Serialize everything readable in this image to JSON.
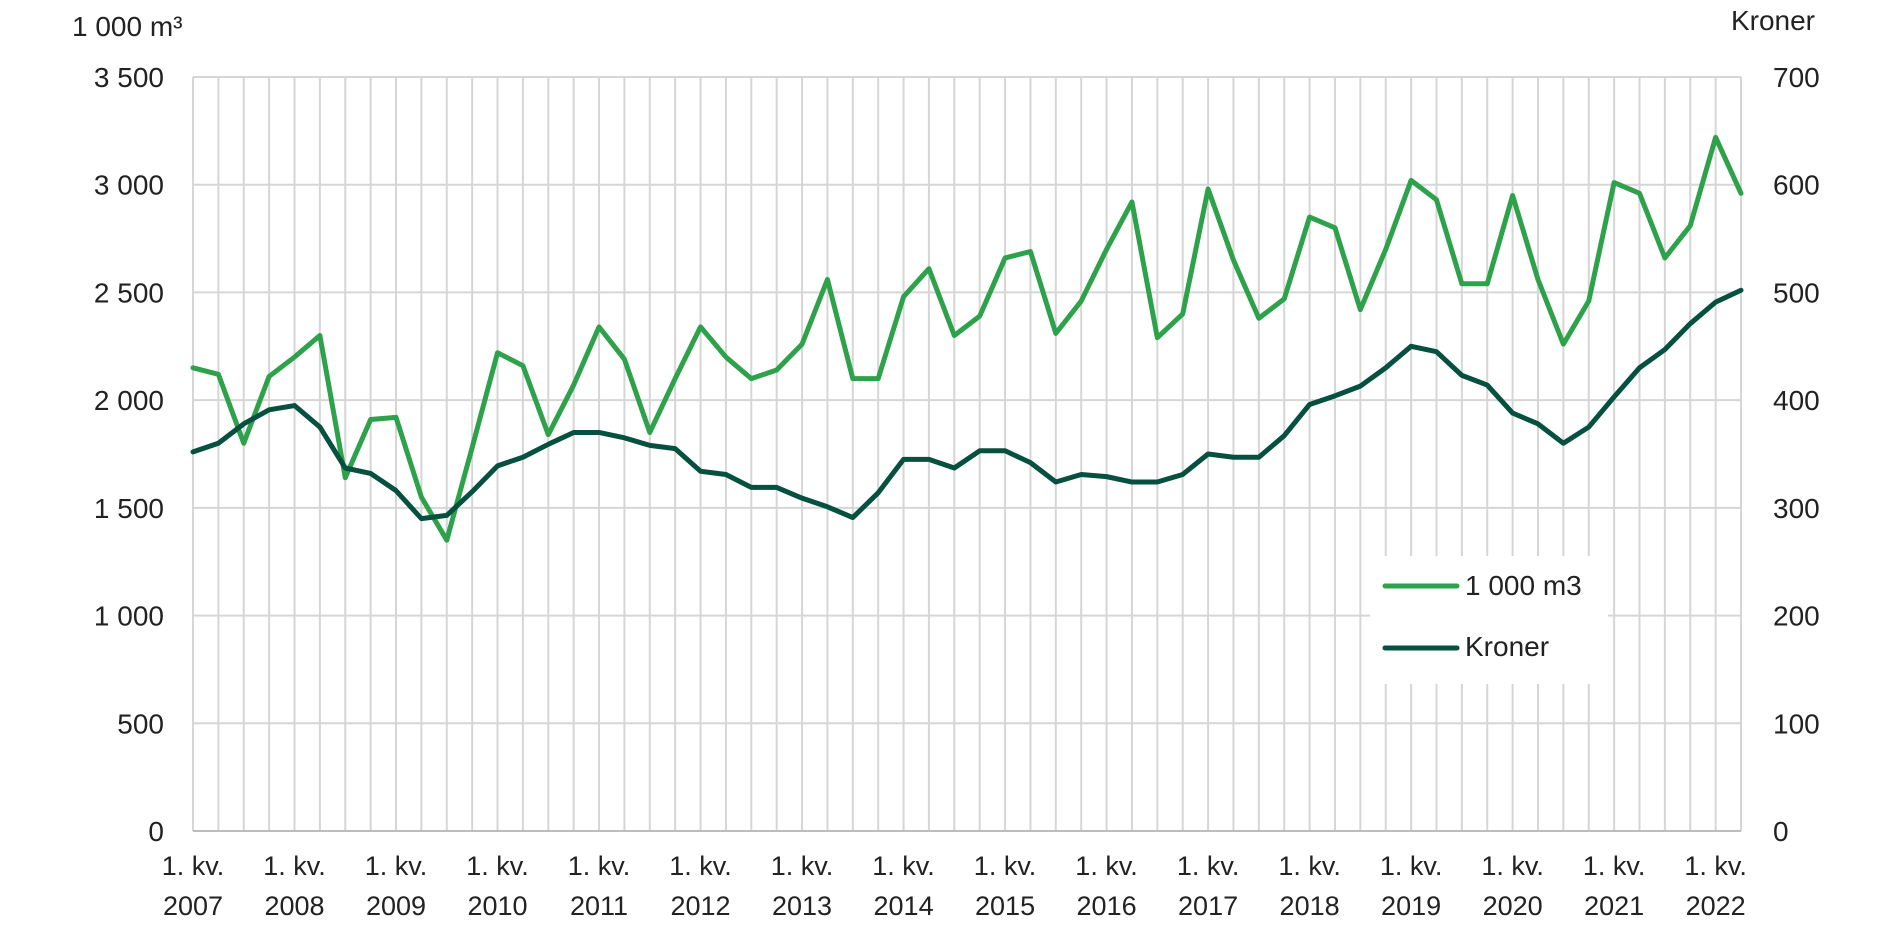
{
  "chart_data": {
    "type": "line",
    "left_axis_label": "1 000 m³",
    "right_axis_label": "Kroner",
    "left_ylim": [
      0,
      3500
    ],
    "right_ylim": [
      0,
      700
    ],
    "left_ticks": [
      "0",
      "500",
      "1 000",
      "1 500",
      "2 000",
      "2 500",
      "3 000",
      "3 500"
    ],
    "right_ticks": [
      "0",
      "100",
      "200",
      "300",
      "400",
      "500",
      "600",
      "700"
    ],
    "x_tick_labels": [
      {
        "line1": "1. kv.",
        "line2": "2007"
      },
      {
        "line1": "1. kv.",
        "line2": "2008"
      },
      {
        "line1": "1. kv.",
        "line2": "2009"
      },
      {
        "line1": "1. kv.",
        "line2": "2010"
      },
      {
        "line1": "1. kv.",
        "line2": "2011"
      },
      {
        "line1": "1. kv.",
        "line2": "2012"
      },
      {
        "line1": "1. kv.",
        "line2": "2013"
      },
      {
        "line1": "1. kv.",
        "line2": "2014"
      },
      {
        "line1": "1. kv.",
        "line2": "2015"
      },
      {
        "line1": "1. kv.",
        "line2": "2016"
      },
      {
        "line1": "1. kv.",
        "line2": "2017"
      },
      {
        "line1": "1. kv.",
        "line2": "2018"
      },
      {
        "line1": "1. kv.",
        "line2": "2019"
      },
      {
        "line1": "1. kv.",
        "line2": "2020"
      },
      {
        "line1": "1. kv.",
        "line2": "2021"
      },
      {
        "line1": "1. kv.",
        "line2": "2022"
      }
    ],
    "x_start": "1. kv. 2007",
    "x_end": "1. kv. 2022",
    "grid": "vertical-and-horizontal",
    "legend_position": "bottom-right",
    "series": [
      {
        "name": "1 000 m3",
        "axis": "left",
        "color": "#2ea24a",
        "values": [
          2150,
          2120,
          1800,
          2110,
          2200,
          2300,
          1640,
          1910,
          1920,
          1550,
          1350,
          1780,
          2220,
          2160,
          1840,
          2070,
          2340,
          2190,
          1850,
          2100,
          2340,
          2200,
          2100,
          2140,
          2260,
          2560,
          2100,
          2100,
          2480,
          2610,
          2300,
          2390,
          2660,
          2690,
          2310,
          2460,
          2700,
          2920,
          2290,
          2400,
          2980,
          2650,
          2380,
          2470,
          2850,
          2800,
          2420,
          2700,
          3020,
          2930,
          2540,
          2540,
          2950,
          2560,
          2260,
          2460,
          3010,
          2960,
          2660,
          2810,
          3220,
          2960
        ]
      },
      {
        "name": "Kroner",
        "axis": "right",
        "color": "#06503f",
        "values": [
          352,
          360,
          378,
          391,
          395,
          375,
          337,
          332,
          316,
          290,
          293,
          315,
          339,
          347,
          359,
          370,
          370,
          365,
          358,
          355,
          334,
          331,
          319,
          319,
          309,
          301,
          291,
          314,
          345,
          345,
          337,
          353,
          353,
          342,
          324,
          331,
          329,
          324,
          324,
          331,
          350,
          347,
          347,
          367,
          396,
          404,
          413,
          430,
          450,
          445,
          423,
          414,
          388,
          378,
          360,
          375,
          403,
          430,
          447,
          471,
          491,
          502
        ]
      }
    ]
  }
}
